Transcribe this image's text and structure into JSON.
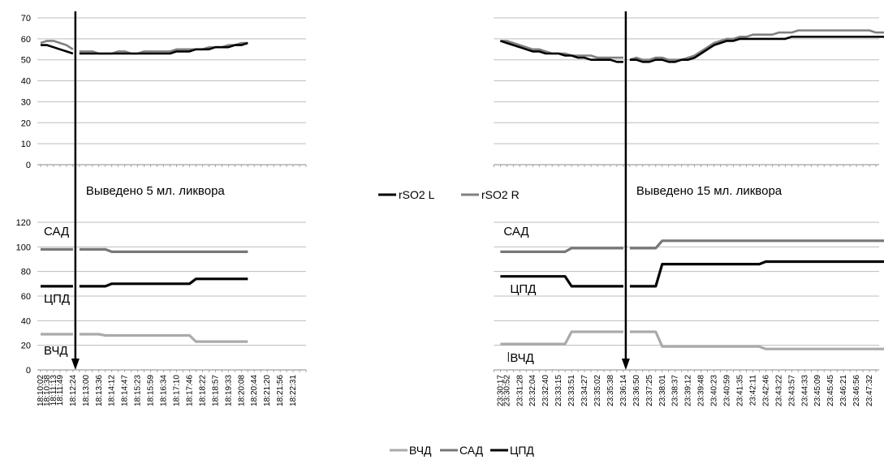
{
  "chart_data": [
    {
      "type": "line",
      "title": "",
      "ylim": [
        0,
        70
      ],
      "yticks": [
        0,
        10,
        20,
        30,
        40,
        50,
        60,
        70
      ],
      "grid": true,
      "legend_position": "middle",
      "series": [
        {
          "name": "rSO2 L",
          "color": "#000000",
          "segments": [
            {
              "start": 0,
              "values": [
                57,
                57,
                56,
                55,
                54,
                53
              ]
            },
            {
              "start": 6,
              "values": [
                53,
                53,
                53,
                53,
                53,
                53,
                53,
                53,
                53,
                53,
                53,
                53,
                53,
                53,
                53,
                54,
                54,
                54,
                55,
                55,
                55,
                56,
                56,
                56,
                57,
                57,
                58
              ]
            },
            {
              "start": 71,
              "values": [
                59,
                58,
                57,
                56,
                55,
                54,
                54,
                53,
                53,
                53,
                52,
                52,
                51,
                51,
                50,
                50,
                50,
                50,
                49,
                49
              ]
            },
            {
              "start": 91,
              "values": [
                50,
                50,
                49,
                49,
                50,
                50,
                49,
                49,
                50,
                50,
                51,
                53,
                55,
                57,
                58,
                59,
                59,
                60,
                60,
                60,
                60,
                60,
                60,
                60,
                60,
                61,
                61,
                61,
                61,
                61,
                61,
                61,
                61,
                61,
                61,
                61,
                61,
                61,
                61,
                61,
                61
              ]
            }
          ]
        },
        {
          "name": "rSO2 R",
          "color": "#808080",
          "segments": [
            {
              "start": 0,
              "values": [
                58,
                59,
                59,
                58,
                57,
                55
              ]
            },
            {
              "start": 6,
              "values": [
                54,
                54,
                54,
                53,
                53,
                53,
                54,
                54,
                53,
                53,
                54,
                54,
                54,
                54,
                54,
                55,
                55,
                55,
                55,
                55,
                56,
                56,
                56,
                57,
                57,
                58,
                58
              ]
            },
            {
              "start": 71,
              "values": [
                59,
                59,
                58,
                57,
                56,
                55,
                55,
                54,
                53,
                53,
                53,
                52,
                52,
                52,
                52,
                51,
                51,
                51,
                51,
                51
              ]
            },
            {
              "start": 91,
              "values": [
                50,
                51,
                50,
                50,
                51,
                51,
                50,
                50,
                50,
                51,
                52,
                54,
                56,
                58,
                59,
                60,
                60,
                61,
                61,
                62,
                62,
                62,
                62,
                63,
                63,
                63,
                64,
                64,
                64,
                64,
                64,
                64,
                64,
                64,
                64,
                64,
                64,
                64,
                63,
                63,
                63
              ]
            }
          ]
        }
      ],
      "annotations": [
        {
          "text": "Выведено 5 мл. ликвора",
          "x_index": 6
        },
        {
          "text": "Выведено 15 мл. ликвора",
          "x_index": 91
        }
      ]
    },
    {
      "type": "line",
      "title": "",
      "ylim": [
        0,
        120
      ],
      "yticks": [
        0,
        20,
        40,
        60,
        80,
        100,
        120
      ],
      "grid": true,
      "legend_position": "bottom",
      "series": [
        {
          "name": "ВЧД",
          "color": "#aaaaaa",
          "segments": [
            {
              "start": 0,
              "values": [
                29,
                29,
                29,
                29,
                29,
                29
              ]
            },
            {
              "start": 6,
              "values": [
                29,
                29,
                29,
                29,
                28,
                28,
                28,
                28,
                28,
                28,
                28,
                28,
                28,
                28,
                28,
                28,
                28,
                28,
                23,
                23,
                23,
                23,
                23,
                23,
                23,
                23,
                23
              ]
            },
            {
              "start": 71,
              "values": [
                21,
                21,
                21,
                21,
                21,
                21,
                21,
                21,
                21,
                21,
                21,
                31,
                31,
                31,
                31,
                31,
                31,
                31,
                31,
                31
              ]
            },
            {
              "start": 91,
              "values": [
                31,
                31,
                31,
                31,
                31,
                19,
                19,
                19,
                19,
                19,
                19,
                19,
                19,
                19,
                19,
                19,
                19,
                19,
                19,
                19,
                19,
                17,
                17,
                17,
                17,
                17,
                17,
                17,
                17,
                17,
                17,
                17,
                17,
                17,
                17,
                17,
                17,
                17,
                17,
                17,
                17
              ]
            }
          ]
        },
        {
          "name": "САД",
          "color": "#777777",
          "segments": [
            {
              "start": 0,
              "values": [
                98,
                98,
                98,
                98,
                98,
                98
              ]
            },
            {
              "start": 6,
              "values": [
                98,
                98,
                98,
                98,
                98,
                96,
                96,
                96,
                96,
                96,
                96,
                96,
                96,
                96,
                96,
                96,
                96,
                96,
                96,
                96,
                96,
                96,
                96,
                96,
                96,
                96,
                96
              ]
            },
            {
              "start": 71,
              "values": [
                96,
                96,
                96,
                96,
                96,
                96,
                96,
                96,
                96,
                96,
                96,
                99,
                99,
                99,
                99,
                99,
                99,
                99,
                99,
                99
              ]
            },
            {
              "start": 91,
              "values": [
                99,
                99,
                99,
                99,
                99,
                105,
                105,
                105,
                105,
                105,
                105,
                105,
                105,
                105,
                105,
                105,
                105,
                105,
                105,
                105,
                105,
                105,
                105,
                105,
                105,
                105,
                105,
                105,
                105,
                105,
                105,
                105,
                105,
                105,
                105,
                105,
                105,
                105,
                105,
                105,
                105
              ]
            }
          ]
        },
        {
          "name": "ЦПД",
          "color": "#000000",
          "segments": [
            {
              "start": 0,
              "values": [
                68,
                68,
                68,
                68,
                68,
                68
              ]
            },
            {
              "start": 6,
              "values": [
                68,
                68,
                68,
                68,
                68,
                70,
                70,
                70,
                70,
                70,
                70,
                70,
                70,
                70,
                70,
                70,
                70,
                70,
                74,
                74,
                74,
                74,
                74,
                74,
                74,
                74,
                74
              ]
            },
            {
              "start": 71,
              "values": [
                76,
                76,
                76,
                76,
                76,
                76,
                76,
                76,
                76,
                76,
                76,
                68,
                68,
                68,
                68,
                68,
                68,
                68,
                68,
                68
              ]
            },
            {
              "start": 91,
              "values": [
                68,
                68,
                68,
                68,
                68,
                86,
                86,
                86,
                86,
                86,
                86,
                86,
                86,
                86,
                86,
                86,
                86,
                86,
                86,
                86,
                86,
                88,
                88,
                88,
                88,
                88,
                88,
                88,
                88,
                88,
                88,
                88,
                88,
                88,
                88,
                88,
                88,
                88,
                88,
                88,
                88
              ]
            }
          ]
        }
      ],
      "annotations": [
        {
          "text": "САД",
          "x_index": 0
        },
        {
          "text": "ЦПД",
          "x_index": 0
        },
        {
          "text": "ВЧД",
          "x_index": 0
        },
        {
          "text": "САД",
          "x_index": 71
        },
        {
          "text": "ЦПД",
          "x_index": 72
        },
        {
          "text": "ВЧД",
          "x_index": 72
        }
      ],
      "x_tick_labels": [
        {
          "index": 0,
          "label": "18:10:02"
        },
        {
          "index": 1,
          "label": "18:10:38"
        },
        {
          "index": 2,
          "label": "18:11:13"
        },
        {
          "index": 3,
          "label": "18:11:49"
        },
        {
          "index": 5,
          "label": "18:12:24"
        },
        {
          "index": 7,
          "label": "18:13:00"
        },
        {
          "index": 9,
          "label": "18:13:36"
        },
        {
          "index": 11,
          "label": "18:14:12"
        },
        {
          "index": 13,
          "label": "18:14:47"
        },
        {
          "index": 15,
          "label": "18:15:23"
        },
        {
          "index": 17,
          "label": "18:15:59"
        },
        {
          "index": 19,
          "label": "18:16:34"
        },
        {
          "index": 21,
          "label": "18:17:10"
        },
        {
          "index": 23,
          "label": "18:17:46"
        },
        {
          "index": 25,
          "label": "18:18:22"
        },
        {
          "index": 27,
          "label": "18:18:57"
        },
        {
          "index": 29,
          "label": "18:19:33"
        },
        {
          "index": 31,
          "label": "18:20:08"
        },
        {
          "index": 33,
          "label": "18:20:44"
        },
        {
          "index": 35,
          "label": "18:21:20"
        },
        {
          "index": 37,
          "label": "18:21:56"
        },
        {
          "index": 39,
          "label": "18:22:31"
        },
        {
          "index": 71,
          "label": "23:30:17"
        },
        {
          "index": 72,
          "label": "23:30:52"
        },
        {
          "index": 74,
          "label": "23:31:28"
        },
        {
          "index": 76,
          "label": "23:32:04"
        },
        {
          "index": 78,
          "label": "23:32:40"
        },
        {
          "index": 80,
          "label": "23:33:15"
        },
        {
          "index": 82,
          "label": "23:33:51"
        },
        {
          "index": 84,
          "label": "23:34:27"
        },
        {
          "index": 86,
          "label": "23:35:02"
        },
        {
          "index": 88,
          "label": "23:35:38"
        },
        {
          "index": 90,
          "label": "23:36:14"
        },
        {
          "index": 92,
          "label": "23:36:50"
        },
        {
          "index": 94,
          "label": "23:37:25"
        },
        {
          "index": 96,
          "label": "23:38:01"
        },
        {
          "index": 98,
          "label": "23:38:37"
        },
        {
          "index": 100,
          "label": "23:39:12"
        },
        {
          "index": 102,
          "label": "23:39:48"
        },
        {
          "index": 104,
          "label": "23:40:23"
        },
        {
          "index": 106,
          "label": "23:40:59"
        },
        {
          "index": 108,
          "label": "23:41:35"
        },
        {
          "index": 110,
          "label": "23:42:11"
        },
        {
          "index": 112,
          "label": "23:42:46"
        },
        {
          "index": 114,
          "label": "23:43:22"
        },
        {
          "index": 116,
          "label": "23:43:57"
        },
        {
          "index": 118,
          "label": "23:44:33"
        },
        {
          "index": 120,
          "label": "23:45:09"
        },
        {
          "index": 122,
          "label": "23:45:45"
        },
        {
          "index": 124,
          "label": "23:46:21"
        },
        {
          "index": 126,
          "label": "23:46:56"
        },
        {
          "index": 128,
          "label": "23:47:32"
        }
      ],
      "legend_entries": [
        {
          "name": "ВЧД",
          "color": "#aaaaaa"
        },
        {
          "name": "САД",
          "color": "#777777"
        },
        {
          "name": "ЦПД",
          "color": "#000000"
        }
      ]
    }
  ],
  "legend_top": [
    {
      "name": "rSO2 L",
      "color": "#000000"
    },
    {
      "name": "rSO2 R",
      "color": "#808080"
    }
  ]
}
